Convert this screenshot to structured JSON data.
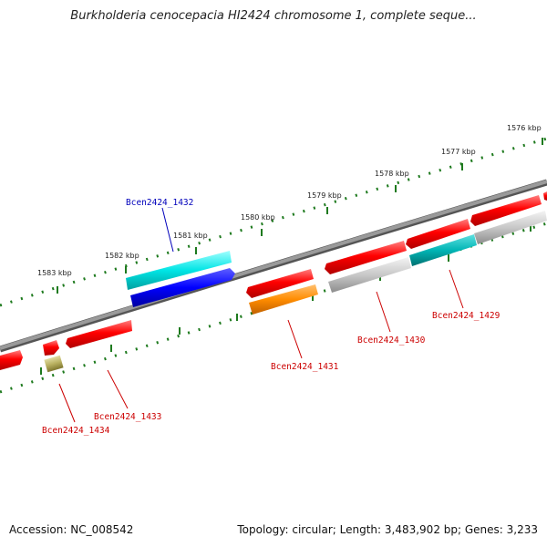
{
  "title": "Burkholderia cenocepacia HI2424 chromosome 1, complete seque...",
  "footer": {
    "accession": "Accession: NC_008542",
    "summary": "Topology: circular; Length: 3,483,902 bp; Genes: 3,233"
  },
  "colors": {
    "backbone": "#858585",
    "ticks": "#1e7a1e",
    "label_red": "#cc0000",
    "label_blue": "#0000bb"
  },
  "scale_labels": [
    "1576 kbp",
    "1577 kbp",
    "1578 kbp",
    "1579 kbp",
    "1580 kbp",
    "1581 kbp",
    "1582 kbp",
    "1583 kbp"
  ],
  "genes": [
    {
      "id": "Bcen2424_1429",
      "color": "#ff0000"
    },
    {
      "id": "Bcen2424_1430",
      "color": "#ff0000"
    },
    {
      "id": "Bcen2424_1431",
      "color": "#ff0000"
    },
    {
      "id": "Bcen2424_1432",
      "color": "#00dddd"
    },
    {
      "id": "Bcen2424_1433",
      "color": "#ff0000"
    },
    {
      "id": "Bcen2424_1434",
      "color": "#ff0000"
    }
  ]
}
